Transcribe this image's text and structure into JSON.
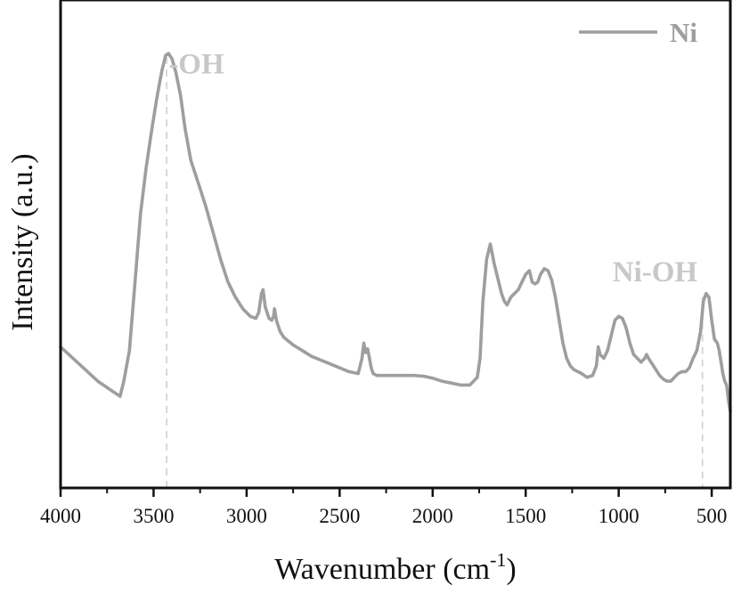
{
  "chart_data": {
    "type": "line",
    "title": "",
    "xlabel": "Wavenumber (cm",
    "xlabel_sup": "-1",
    "xlabel_end": ")",
    "ylabel": "Intensity (a.u.)",
    "xlim": [
      4000,
      400
    ],
    "ylim": [
      0,
      1
    ],
    "x_reversed": true,
    "y_ticks_shown": false,
    "grid": false,
    "legend_position": "top-right",
    "x_ticks": [
      4000,
      3500,
      3000,
      2500,
      2000,
      1500,
      1000,
      500
    ],
    "x_tick_labels": [
      "4000",
      "3500",
      "3000",
      "2500",
      "2000",
      "1500",
      "1000",
      "500"
    ],
    "series": [
      {
        "name": "Ni",
        "color": "#9e9e9e",
        "x": [
          4000,
          3900,
          3800,
          3680,
          3660,
          3630,
          3600,
          3570,
          3540,
          3510,
          3480,
          3455,
          3435,
          3420,
          3400,
          3380,
          3355,
          3330,
          3300,
          3260,
          3220,
          3180,
          3140,
          3100,
          3060,
          3020,
          2980,
          2950,
          2935,
          2920,
          2912,
          2900,
          2880,
          2865,
          2855,
          2850,
          2840,
          2820,
          2800,
          2750,
          2700,
          2650,
          2600,
          2550,
          2500,
          2450,
          2400,
          2380,
          2370,
          2360,
          2350,
          2340,
          2330,
          2320,
          2300,
          2250,
          2200,
          2150,
          2100,
          2050,
          2000,
          1950,
          1900,
          1850,
          1800,
          1780,
          1760,
          1745,
          1730,
          1710,
          1690,
          1670,
          1650,
          1630,
          1615,
          1600,
          1580,
          1560,
          1540,
          1520,
          1500,
          1480,
          1465,
          1450,
          1435,
          1420,
          1400,
          1380,
          1360,
          1340,
          1320,
          1300,
          1280,
          1260,
          1240,
          1200,
          1170,
          1140,
          1120,
          1110,
          1100,
          1080,
          1060,
          1040,
          1020,
          1000,
          980,
          960,
          940,
          920,
          900,
          880,
          860,
          850,
          840,
          820,
          800,
          780,
          760,
          740,
          720,
          700,
          680,
          660,
          640,
          620,
          600,
          580,
          560,
          545,
          530,
          515,
          500,
          485,
          470,
          460,
          450,
          440,
          430,
          420,
          410,
          400
        ],
        "y": [
          0.23,
          0.185,
          0.14,
          0.1,
          0.14,
          0.22,
          0.4,
          0.58,
          0.7,
          0.8,
          0.89,
          0.955,
          0.995,
          1.0,
          0.985,
          0.95,
          0.89,
          0.8,
          0.72,
          0.66,
          0.6,
          0.53,
          0.46,
          0.4,
          0.36,
          0.33,
          0.31,
          0.305,
          0.32,
          0.37,
          0.38,
          0.335,
          0.305,
          0.3,
          0.31,
          0.33,
          0.3,
          0.27,
          0.255,
          0.235,
          0.22,
          0.205,
          0.195,
          0.185,
          0.175,
          0.165,
          0.16,
          0.2,
          0.24,
          0.215,
          0.225,
          0.2,
          0.175,
          0.16,
          0.155,
          0.155,
          0.155,
          0.155,
          0.155,
          0.153,
          0.148,
          0.14,
          0.135,
          0.13,
          0.13,
          0.14,
          0.15,
          0.2,
          0.35,
          0.46,
          0.5,
          0.45,
          0.41,
          0.37,
          0.35,
          0.34,
          0.36,
          0.37,
          0.38,
          0.4,
          0.42,
          0.43,
          0.4,
          0.395,
          0.4,
          0.42,
          0.435,
          0.43,
          0.405,
          0.36,
          0.3,
          0.24,
          0.2,
          0.18,
          0.17,
          0.16,
          0.15,
          0.155,
          0.18,
          0.23,
          0.21,
          0.2,
          0.22,
          0.26,
          0.3,
          0.31,
          0.305,
          0.28,
          0.24,
          0.21,
          0.2,
          0.19,
          0.2,
          0.21,
          0.2,
          0.185,
          0.17,
          0.155,
          0.145,
          0.14,
          0.14,
          0.15,
          0.16,
          0.165,
          0.165,
          0.175,
          0.2,
          0.22,
          0.27,
          0.35,
          0.37,
          0.36,
          0.3,
          0.25,
          0.24,
          0.22,
          0.19,
          0.16,
          0.14,
          0.13,
          0.09,
          0.06
        ]
      }
    ],
    "reference_lines": [
      {
        "x": 3430,
        "y_top": 1.0,
        "color": "#cfcfcf"
      },
      {
        "x": 550,
        "y_top": 0.37,
        "color": "#cfcfcf"
      }
    ],
    "annotations": [
      {
        "text": "-OH",
        "x": 3270,
        "y": 0.975,
        "color": "#c8c8c8"
      },
      {
        "text": "Ni-OH",
        "x": 805,
        "y": 0.43,
        "color": "#c8c8c8"
      }
    ]
  }
}
